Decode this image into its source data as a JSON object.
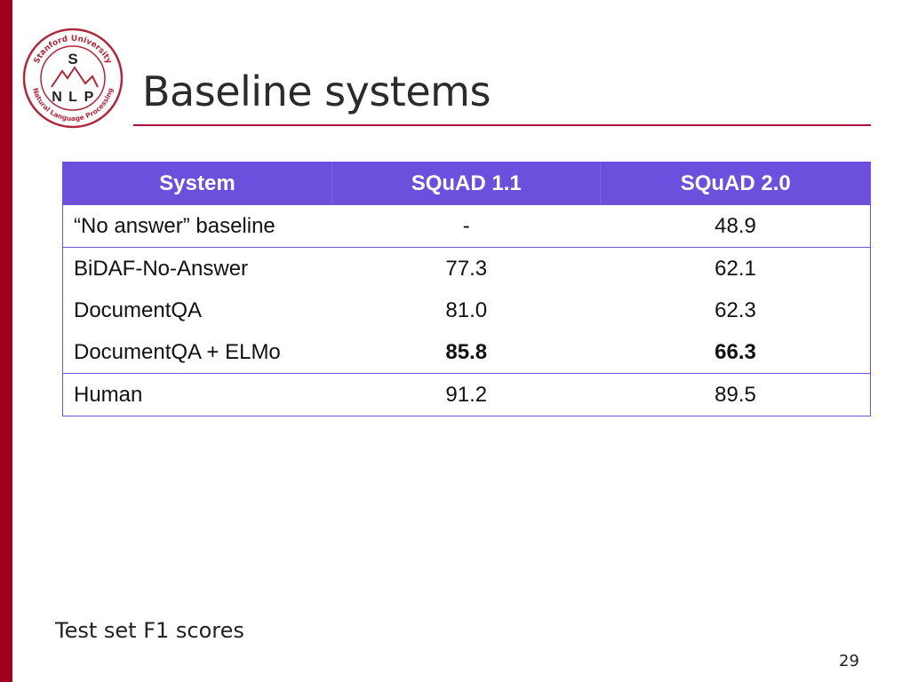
{
  "logo": {
    "ring_top": "Stanford University",
    "ring_bottom": "Natural Language Processing",
    "letter_top": "S",
    "letters_bottom": [
      "N",
      "L",
      "P"
    ],
    "color": "#b0283a"
  },
  "slide": {
    "title": "Baseline systems",
    "caption": "Test set F1 scores",
    "page_number": "29",
    "accent_color": "#a0001e",
    "header_color": "#6c4fdc"
  },
  "table": {
    "headers": [
      "System",
      "SQuAD 1.1",
      "SQuAD 2.0"
    ],
    "rows": [
      {
        "system": "“No answer” baseline",
        "squad11": "-",
        "squad20": "48.9",
        "bold": false
      },
      {
        "system": "BiDAF-No-Answer",
        "squad11": "77.3",
        "squad20": "62.1",
        "bold": false
      },
      {
        "system": "DocumentQA",
        "squad11": "81.0",
        "squad20": "62.3",
        "bold": false
      },
      {
        "system": "DocumentQA + ELMo",
        "squad11": "85.8",
        "squad20": "66.3",
        "bold": true
      },
      {
        "system": "Human",
        "squad11": "91.2",
        "squad20": "89.5",
        "bold": false
      }
    ]
  }
}
